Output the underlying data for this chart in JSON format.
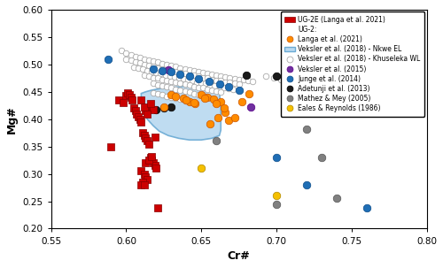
{
  "title": "",
  "xlabel": "Cr#",
  "ylabel": "Mg#",
  "xlim": [
    0.55,
    0.8
  ],
  "ylim": [
    0.2,
    0.6
  ],
  "xticks": [
    0.55,
    0.6,
    0.65,
    0.7,
    0.75,
    0.8
  ],
  "yticks": [
    0.2,
    0.25,
    0.3,
    0.35,
    0.4,
    0.45,
    0.5,
    0.55,
    0.6
  ],
  "ug2e_langa2021": {
    "color": "#cc0000",
    "marker": "s",
    "label": "UG-2E (Langa et al. 2021)",
    "x": [
      0.59,
      0.595,
      0.598,
      0.6,
      0.601,
      0.602,
      0.603,
      0.604,
      0.605,
      0.606,
      0.607,
      0.608,
      0.609,
      0.61,
      0.611,
      0.612,
      0.613,
      0.614,
      0.615,
      0.616,
      0.617,
      0.618,
      0.619,
      0.62,
      0.61,
      0.612,
      0.613,
      0.614,
      0.611,
      0.61,
      0.612,
      0.613,
      0.615,
      0.617,
      0.619,
      0.621,
      0.615,
      0.613,
      0.612,
      0.618,
      0.61,
      0.616,
      0.614
    ],
    "y": [
      0.35,
      0.435,
      0.43,
      0.443,
      0.448,
      0.445,
      0.44,
      0.435,
      0.42,
      0.415,
      0.41,
      0.405,
      0.4,
      0.395,
      0.375,
      0.37,
      0.365,
      0.36,
      0.355,
      0.33,
      0.325,
      0.32,
      0.315,
      0.31,
      0.305,
      0.3,
      0.295,
      0.29,
      0.285,
      0.28,
      0.28,
      0.32,
      0.325,
      0.332,
      0.367,
      0.238,
      0.42,
      0.415,
      0.422,
      0.418,
      0.435,
      0.428,
      0.41
    ]
  },
  "ug2_langa2021": {
    "color": "#ff8c00",
    "marker": "o",
    "label": "Langa et al. (2021)",
    "x": [
      0.625,
      0.63,
      0.633,
      0.638,
      0.642,
      0.646,
      0.65,
      0.654,
      0.658,
      0.663,
      0.668,
      0.672,
      0.677,
      0.682,
      0.656,
      0.661,
      0.666,
      0.64,
      0.645,
      0.652,
      0.66,
      0.665
    ],
    "y": [
      0.422,
      0.445,
      0.442,
      0.438,
      0.432,
      0.428,
      0.445,
      0.44,
      0.436,
      0.432,
      0.398,
      0.402,
      0.432,
      0.447,
      0.392,
      0.402,
      0.412,
      0.435,
      0.43,
      0.438,
      0.428,
      0.42
    ]
  },
  "veksler2018_nkwe": {
    "color": "#b8d9f0",
    "edgecolor": "#6aaad4",
    "label": "Veksler et al. (2018) - Nkwe EL",
    "patch_x": [
      0.61,
      0.611,
      0.612,
      0.614,
      0.618,
      0.622,
      0.628,
      0.635,
      0.642,
      0.65,
      0.657,
      0.662,
      0.663,
      0.663,
      0.662,
      0.658,
      0.652,
      0.645,
      0.638,
      0.63,
      0.623,
      0.617,
      0.613,
      0.61,
      0.61
    ],
    "patch_y": [
      0.44,
      0.43,
      0.415,
      0.4,
      0.388,
      0.378,
      0.37,
      0.365,
      0.362,
      0.362,
      0.365,
      0.37,
      0.38,
      0.42,
      0.45,
      0.46,
      0.462,
      0.462,
      0.46,
      0.458,
      0.456,
      0.453,
      0.45,
      0.447,
      0.44
    ]
  },
  "veksler2018_khuseleka": {
    "facecolor": "#ffffff",
    "edgecolor": "#aaaaaa",
    "marker": "o",
    "label": "Veksler et al. (2018) - Khuseleka WL",
    "x": [
      0.597,
      0.6,
      0.603,
      0.606,
      0.609,
      0.612,
      0.615,
      0.618,
      0.621,
      0.624,
      0.627,
      0.63,
      0.633,
      0.636,
      0.639,
      0.642,
      0.645,
      0.648,
      0.651,
      0.654,
      0.657,
      0.66,
      0.663,
      0.666,
      0.669,
      0.672,
      0.675,
      0.678,
      0.681,
      0.684,
      0.6,
      0.603,
      0.606,
      0.609,
      0.612,
      0.615,
      0.618,
      0.621,
      0.624,
      0.627,
      0.63,
      0.633,
      0.636,
      0.639,
      0.642,
      0.645,
      0.648,
      0.651,
      0.654,
      0.657,
      0.66,
      0.663,
      0.666,
      0.669,
      0.672,
      0.675,
      0.605,
      0.608,
      0.611,
      0.614,
      0.617,
      0.62,
      0.623,
      0.626,
      0.629,
      0.632,
      0.635,
      0.638,
      0.641,
      0.644,
      0.647,
      0.65,
      0.653,
      0.656,
      0.659,
      0.662,
      0.665,
      0.668,
      0.671,
      0.612,
      0.615,
      0.618,
      0.621,
      0.624,
      0.627,
      0.63,
      0.633,
      0.636,
      0.639,
      0.642,
      0.645,
      0.648,
      0.651,
      0.654,
      0.657,
      0.66,
      0.663,
      0.618,
      0.621,
      0.624,
      0.627,
      0.63,
      0.633,
      0.636,
      0.639,
      0.642,
      0.645,
      0.648,
      0.651,
      0.654,
      0.618,
      0.621,
      0.624,
      0.627,
      0.63,
      0.633,
      0.636,
      0.639,
      0.642,
      0.693,
      0.698,
      0.703,
      0.708
    ],
    "y": [
      0.525,
      0.52,
      0.517,
      0.514,
      0.512,
      0.51,
      0.508,
      0.506,
      0.504,
      0.502,
      0.5,
      0.498,
      0.496,
      0.494,
      0.492,
      0.49,
      0.488,
      0.487,
      0.485,
      0.483,
      0.482,
      0.48,
      0.479,
      0.477,
      0.476,
      0.474,
      0.473,
      0.472,
      0.47,
      0.469,
      0.51,
      0.508,
      0.505,
      0.503,
      0.5,
      0.498,
      0.496,
      0.494,
      0.492,
      0.49,
      0.489,
      0.487,
      0.485,
      0.483,
      0.481,
      0.48,
      0.478,
      0.476,
      0.475,
      0.473,
      0.471,
      0.47,
      0.468,
      0.467,
      0.465,
      0.464,
      0.495,
      0.493,
      0.491,
      0.489,
      0.487,
      0.485,
      0.483,
      0.481,
      0.479,
      0.477,
      0.475,
      0.474,
      0.472,
      0.47,
      0.468,
      0.466,
      0.465,
      0.463,
      0.461,
      0.459,
      0.458,
      0.456,
      0.454,
      0.48,
      0.478,
      0.476,
      0.475,
      0.473,
      0.471,
      0.469,
      0.467,
      0.466,
      0.464,
      0.462,
      0.46,
      0.458,
      0.457,
      0.455,
      0.453,
      0.451,
      0.449,
      0.465,
      0.463,
      0.461,
      0.459,
      0.457,
      0.455,
      0.453,
      0.451,
      0.449,
      0.447,
      0.445,
      0.444,
      0.442,
      0.448,
      0.446,
      0.444,
      0.442,
      0.44,
      0.438,
      0.436,
      0.434,
      0.432,
      0.478,
      0.475,
      0.472,
      0.469
    ]
  },
  "veksler2015": {
    "color": "#7030a0",
    "marker": "o",
    "label": "Veksler et al. (2015)",
    "x": [
      0.628,
      0.683
    ],
    "y": [
      0.49,
      0.422
    ]
  },
  "junge2014": {
    "color": "#1f6eb5",
    "marker": "o",
    "label": "Junge et al. (2014)",
    "x": [
      0.588,
      0.618,
      0.624,
      0.63,
      0.636,
      0.642,
      0.648,
      0.655,
      0.662,
      0.668,
      0.675,
      0.7,
      0.72,
      0.76
    ],
    "y": [
      0.51,
      0.492,
      0.489,
      0.486,
      0.482,
      0.478,
      0.474,
      0.469,
      0.464,
      0.459,
      0.453,
      0.33,
      0.28,
      0.238
    ]
  },
  "adetunji2013": {
    "color": "#1a1a1a",
    "marker": "o",
    "label": "Adetunji et al. (2013)",
    "x": [
      0.62,
      0.625,
      0.63,
      0.68,
      0.7
    ],
    "y": [
      0.418,
      0.42,
      0.422,
      0.48,
      0.478
    ]
  },
  "mathez2005": {
    "color": "#808080",
    "marker": "o",
    "label": "Mathez & Mey (2005)",
    "x": [
      0.66,
      0.7,
      0.72,
      0.73,
      0.74
    ],
    "y": [
      0.36,
      0.245,
      0.382,
      0.33,
      0.255
    ]
  },
  "eales1986": {
    "color": "#f5c000",
    "marker": "o",
    "label": "Eales & Reynolds (1986)",
    "x": [
      0.65,
      0.7
    ],
    "y": [
      0.31,
      0.26
    ]
  },
  "legend_title": "UG-2:",
  "background_color": "#ffffff",
  "figsize": [
    5.0,
    3.03
  ],
  "dpi": 100
}
